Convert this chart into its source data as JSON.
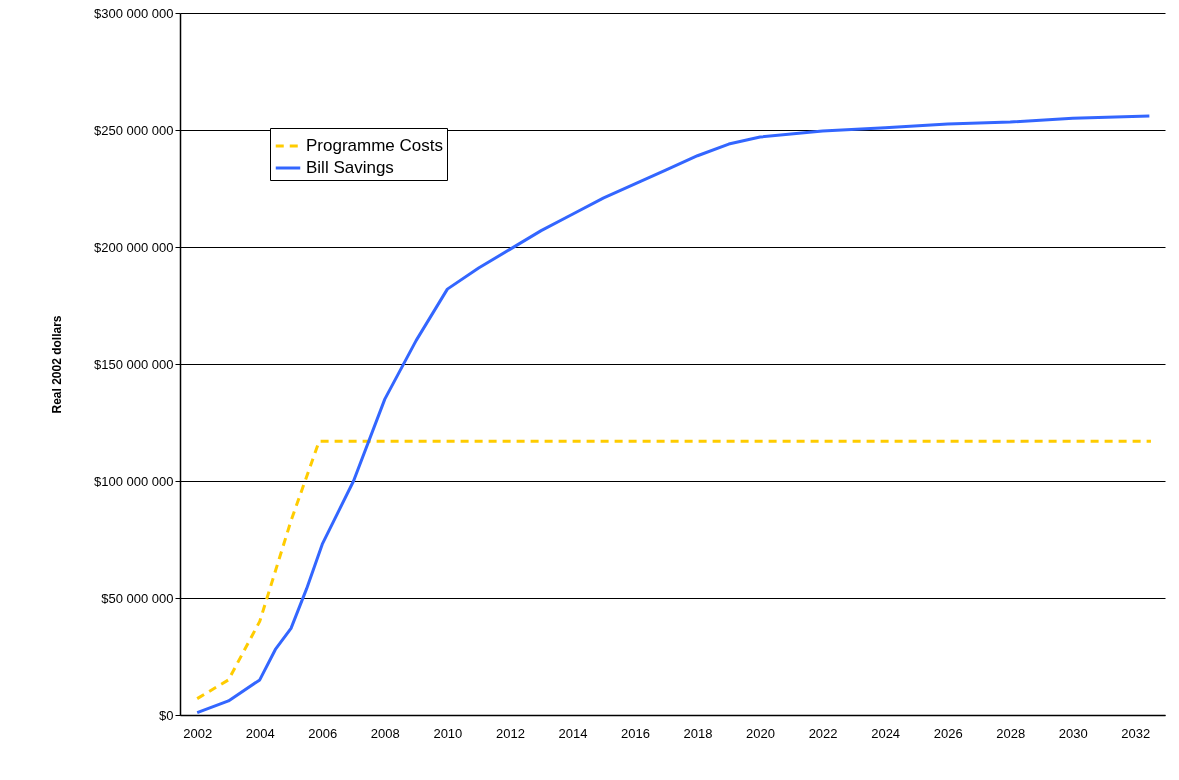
{
  "chart_data": {
    "type": "line",
    "ylabel": "Real 2002 dollars",
    "legend": "top left",
    "grid": "y",
    "xlim": [
      2001.45,
      2032.95
    ],
    "xticks": [
      2002,
      2004,
      2006,
      2008,
      2010,
      2012,
      2014,
      2016,
      2018,
      2020,
      2022,
      2024,
      2026,
      2028,
      2030,
      2032
    ],
    "ylim": [
      0,
      300000000
    ],
    "yticks": [
      {
        "value": 0,
        "label": "$0"
      },
      {
        "value": 50000000,
        "label": "$50 000 000"
      },
      {
        "value": 100000000,
        "label": "$100 000 000"
      },
      {
        "value": 150000000,
        "label": "$150 000 000"
      },
      {
        "value": 200000000,
        "label": "$200 000 000"
      },
      {
        "value": 250000000,
        "label": "$250 000 000"
      },
      {
        "value": 300000000,
        "label": "$300 000 000"
      }
    ],
    "series": [
      {
        "name": "Programme Costs",
        "color": "#ffcc00",
        "line_style": "dashed",
        "x": [
          2002,
          2003,
          2004,
          2005,
          2005.9,
          2032.5
        ],
        "values": [
          7000000,
          15000000,
          40000000,
          83000000,
          117000000,
          117000000
        ]
      },
      {
        "name": "Bill Savings",
        "color": "#3366ff",
        "line_style": "solid",
        "x": [
          2002,
          2003,
          2004,
          2004.5,
          2005,
          2005.5,
          2006,
          2007,
          2008,
          2009,
          2010,
          2011,
          2012,
          2013,
          2014,
          2015,
          2016,
          2017,
          2018,
          2019,
          2020,
          2022,
          2024,
          2026,
          2028,
          2030,
          2032.45
        ],
        "values": [
          1000000,
          6000000,
          15000000,
          28000000,
          37000000,
          54000000,
          73000000,
          100000000,
          135000000,
          160000000,
          182000000,
          191000000,
          199000000,
          207000000,
          214000000,
          221000000,
          227000000,
          233000000,
          239000000,
          244000000,
          247000000,
          249600000,
          251000000,
          252600000,
          253400000,
          255000000,
          256000000
        ]
      }
    ]
  }
}
